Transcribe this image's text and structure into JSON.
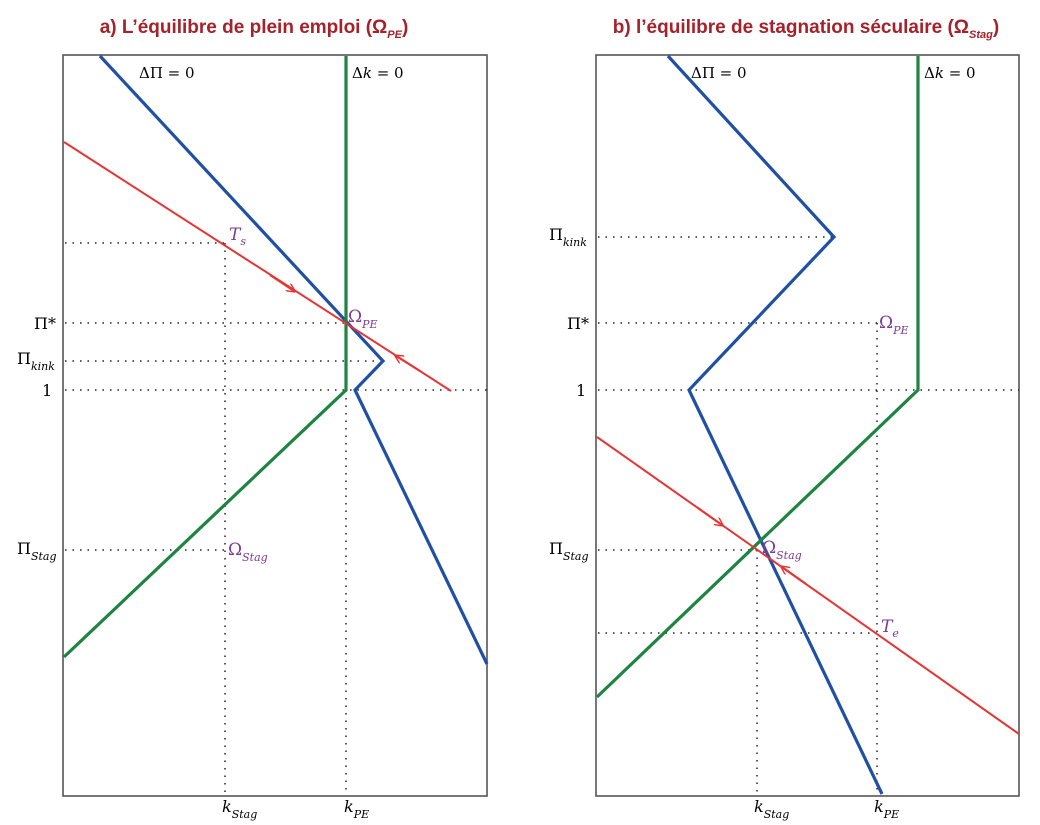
{
  "colors": {
    "title": "#a5222a",
    "frame": "#555555",
    "blue": "#2050a4",
    "green": "#1e8442",
    "red": "#e63535",
    "purple": "#7c3a96",
    "guide": "#222222"
  },
  "panels": [
    {
      "id": "a",
      "title": {
        "text": "a) L’équilibre de plein emploi (Ω",
        "sub": "PE",
        "close": ")"
      },
      "curve_labels": {
        "dpi": {
          "text": "ΔΠ = 0"
        },
        "dk": {
          "pre": "Δ",
          "var": "k",
          "post": " = 0"
        }
      },
      "y_ticks": [
        {
          "id": "pistar",
          "text": "Π*",
          "sub": ""
        },
        {
          "id": "pikink",
          "text": "Π",
          "sub": "kink"
        },
        {
          "id": "one",
          "text": "1",
          "sub": ""
        },
        {
          "id": "pistag",
          "text": "Π",
          "sub": "Stag"
        }
      ],
      "x_ticks": [
        {
          "id": "kstag",
          "text": "k",
          "sub": "Stag"
        },
        {
          "id": "kpe",
          "text": "k",
          "sub": "PE"
        }
      ],
      "points": [
        {
          "id": "omega-pe",
          "text": "Ω",
          "sub": "PE"
        },
        {
          "id": "omega-stag",
          "text": "Ω",
          "sub": "Stag"
        },
        {
          "id": "ts",
          "text": "T",
          "sub": "s"
        }
      ]
    },
    {
      "id": "b",
      "title": {
        "text": "b) l’équilibre de stagnation séculaire (Ω",
        "sub": "Stag",
        "close": ")"
      },
      "curve_labels": {
        "dpi": {
          "text": "ΔΠ = 0"
        },
        "dk": {
          "pre": "Δ",
          "var": "k",
          "post": " = 0"
        }
      },
      "y_ticks": [
        {
          "id": "pikink",
          "text": "Π",
          "sub": "kink"
        },
        {
          "id": "pistar",
          "text": "Π*",
          "sub": ""
        },
        {
          "id": "one",
          "text": "1",
          "sub": ""
        },
        {
          "id": "pistag",
          "text": "Π",
          "sub": "Stag"
        }
      ],
      "x_ticks": [
        {
          "id": "kstag",
          "text": "k",
          "sub": "Stag"
        },
        {
          "id": "kpe",
          "text": "k",
          "sub": "PE"
        }
      ],
      "points": [
        {
          "id": "omega-pe",
          "text": "Ω",
          "sub": "PE"
        },
        {
          "id": "omega-stag",
          "text": "Ω",
          "sub": "Stag"
        },
        {
          "id": "te",
          "text": "T",
          "sub": "e"
        }
      ]
    }
  ]
}
